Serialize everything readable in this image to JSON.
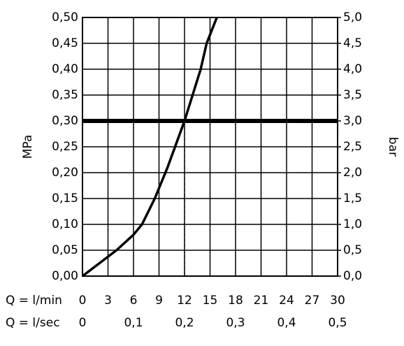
{
  "chart_data": {
    "type": "line",
    "xlabel": "Q = l/min",
    "x2label": "Q = l/sec",
    "ylabel": "MPa",
    "y2label": "bar",
    "x": [
      0,
      2,
      4,
      6,
      7,
      8.5,
      10,
      12,
      13.9,
      14.6,
      15.8
    ],
    "series": [
      {
        "color": "#000000",
        "values": [
          0,
          0.025,
          0.05,
          0.08,
          0.1,
          0.15,
          0.21,
          0.3,
          0.4,
          0.45,
          0.5
        ]
      }
    ],
    "xlim": [
      0,
      30
    ],
    "xticks": [
      0,
      3,
      6,
      9,
      12,
      15,
      18,
      21,
      24,
      27,
      30
    ],
    "x2lim": [
      0,
      0.5
    ],
    "x2ticks": [
      0,
      {
        "value": 0.1,
        "label": "0,1"
      },
      {
        "value": 0.2,
        "label": "0,2"
      },
      {
        "value": 0.3,
        "label": "0,3"
      },
      {
        "value": 0.4,
        "label": "0,4"
      },
      {
        "value": 0.5,
        "label": "0,5"
      }
    ],
    "ylim": [
      0,
      0.5
    ],
    "yticks": [
      {
        "value": 0,
        "label": "0,00"
      },
      {
        "value": 0.05,
        "label": "0,05"
      },
      {
        "value": 0.1,
        "label": "0,10"
      },
      {
        "value": 0.15,
        "label": "0,15"
      },
      {
        "value": 0.2,
        "label": "0,20"
      },
      {
        "value": 0.25,
        "label": "0,25"
      },
      {
        "value": 0.3,
        "label": "0,30"
      },
      {
        "value": 0.35,
        "label": "0,35"
      },
      {
        "value": 0.4,
        "label": "0,40"
      },
      {
        "value": 0.45,
        "label": "0,45"
      },
      {
        "value": 0.5,
        "label": "0,50"
      }
    ],
    "y2lim": [
      0,
      5
    ],
    "y2ticks": [
      {
        "value": 0,
        "label": "0,0"
      },
      {
        "value": 0.5,
        "label": "0,5"
      },
      {
        "value": 1,
        "label": "1,0"
      },
      {
        "value": 1.5,
        "label": "1,5"
      },
      {
        "value": 2,
        "label": "2,0"
      },
      {
        "value": 2.5,
        "label": "2,5"
      },
      {
        "value": 3,
        "label": "3,0"
      },
      {
        "value": 3.5,
        "label": "3,5"
      },
      {
        "value": 4,
        "label": "4,0"
      },
      {
        "value": 4.5,
        "label": "4,5"
      },
      {
        "value": 5,
        "label": "5,0"
      }
    ],
    "reference_y": 0.3,
    "marker_x": 12,
    "grid": true
  }
}
